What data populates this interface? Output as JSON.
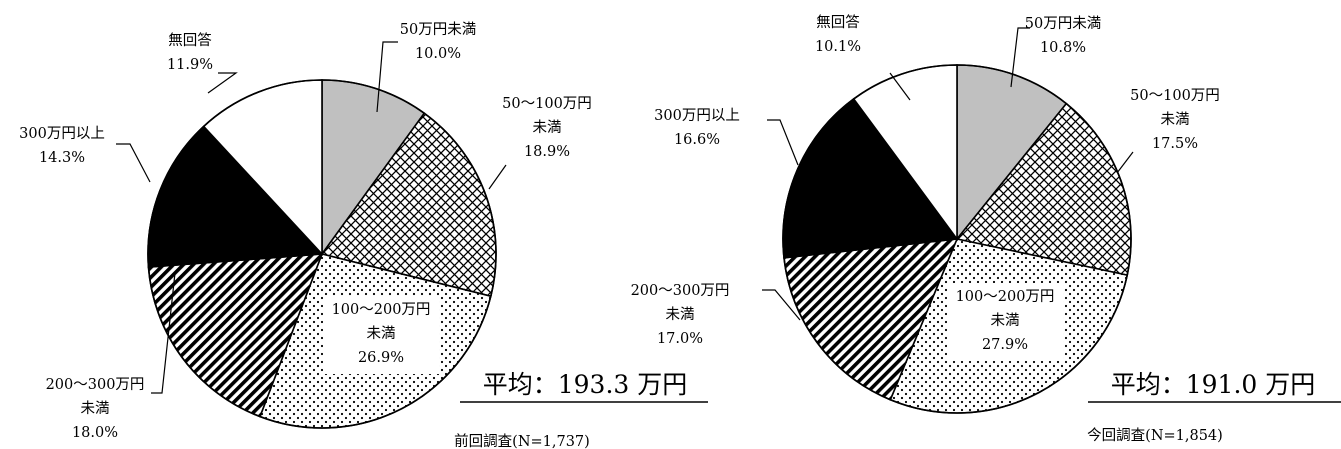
{
  "chart_data": [
    {
      "type": "pie",
      "unit": "%",
      "slices": [
        {
          "label": [
            "50万円未満"
          ],
          "value": 10.0,
          "value_text": "10.0%",
          "pattern": "gray"
        },
        {
          "label": [
            "50～100万円",
            "未満"
          ],
          "value": 18.9,
          "value_text": "18.9%",
          "pattern": "crosshatch"
        },
        {
          "label": [
            "100～200万円",
            "未満"
          ],
          "value": 26.9,
          "value_text": "26.9%",
          "pattern": "dots"
        },
        {
          "label": [
            "200～300万円",
            "未満"
          ],
          "value": 18.0,
          "value_text": "18.0%",
          "pattern": "diagonal"
        },
        {
          "label": [
            "300万円以上"
          ],
          "value": 14.3,
          "value_text": "14.3%",
          "pattern": "black"
        },
        {
          "label": [
            "無回答"
          ],
          "value": 11.9,
          "value_text": "11.9%",
          "pattern": "white"
        }
      ],
      "average": "平均：193.3 万円",
      "note": "前回調査(N=1,737)"
    },
    {
      "type": "pie",
      "unit": "%",
      "slices": [
        {
          "label": [
            "50万円未満"
          ],
          "value": 10.8,
          "value_text": "10.8%",
          "pattern": "gray"
        },
        {
          "label": [
            "50～100万円",
            "未満"
          ],
          "value": 17.5,
          "value_text": "17.5%",
          "pattern": "crosshatch"
        },
        {
          "label": [
            "100～200万円",
            "未満"
          ],
          "value": 27.9,
          "value_text": "27.9%",
          "pattern": "dots"
        },
        {
          "label": [
            "200～300万円",
            "未満"
          ],
          "value": 17.0,
          "value_text": "17.0%",
          "pattern": "diagonal"
        },
        {
          "label": [
            "300万円以上"
          ],
          "value": 16.6,
          "value_text": "16.6%",
          "pattern": "black"
        },
        {
          "label": [
            "無回答"
          ],
          "value": 10.1,
          "value_text": "10.1%",
          "pattern": "white"
        }
      ],
      "average": "平均：191.0 万円",
      "note": "今回調査(N=1,854)"
    }
  ],
  "colors": {
    "gray": "#c0c0c0",
    "black": "#000000",
    "white": "#ffffff",
    "line": "#000000"
  }
}
